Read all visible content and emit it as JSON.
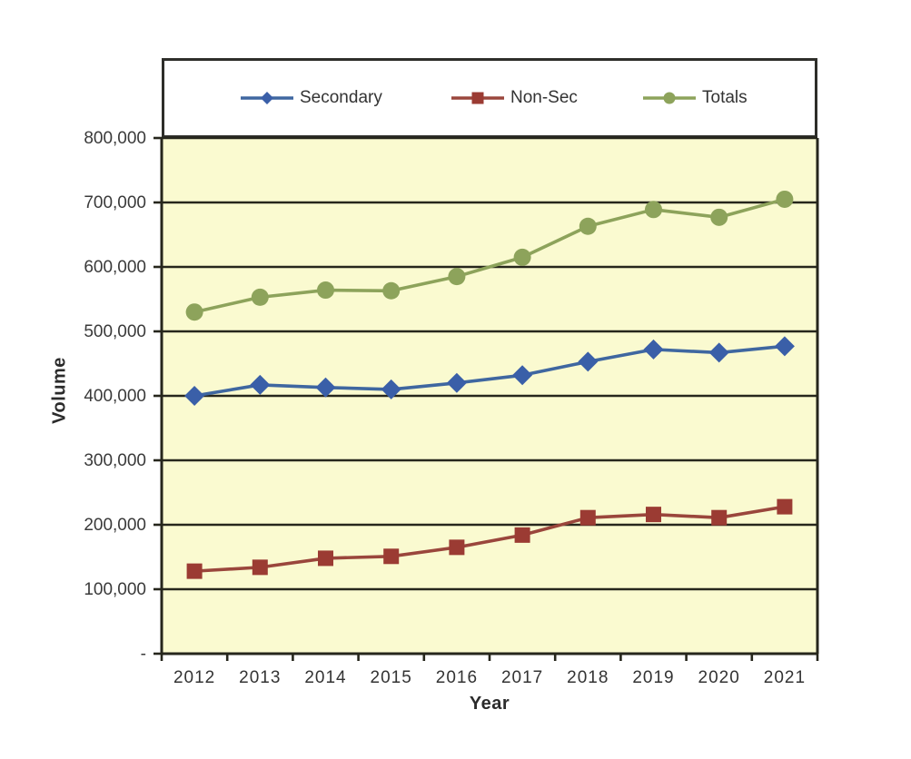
{
  "chart_data": {
    "type": "line",
    "title": "",
    "xlabel": "Year",
    "ylabel": "Volume",
    "x": [
      2012,
      2013,
      2014,
      2015,
      2016,
      2017,
      2018,
      2019,
      2020,
      2021
    ],
    "series": [
      {
        "name": "Secondary",
        "marker": "diamond",
        "color": "#3a5fa8",
        "line_color": "#3f67a0",
        "values": [
          400000,
          417000,
          413000,
          410000,
          420000,
          432000,
          453000,
          472000,
          467000,
          477000
        ]
      },
      {
        "name": "Non-Sec",
        "marker": "square",
        "color": "#9b3b33",
        "line_color": "#9a463c",
        "values": [
          128000,
          134000,
          148000,
          151000,
          165000,
          184000,
          211000,
          216000,
          211000,
          228000
        ]
      },
      {
        "name": "Totals",
        "marker": "circle",
        "color": "#8da35b",
        "line_color": "#8da35b",
        "values": [
          530000,
          553000,
          564000,
          563000,
          585000,
          615000,
          663000,
          689000,
          677000,
          705000
        ]
      }
    ],
    "ylim": [
      0,
      800000
    ],
    "ytick_step": 100000,
    "ytick_labels_top_to_bottom": [
      "800,000",
      "700,000",
      "600,000",
      "500,000",
      "400,000",
      "300,000",
      "200,000",
      "100,000",
      "-"
    ],
    "grid": true,
    "legend_position": "top",
    "plot_bg_color": "#fafad0",
    "grid_color": "#26261c",
    "axis_color": "#26261c",
    "tick_label_color": "#3a3a3a"
  }
}
